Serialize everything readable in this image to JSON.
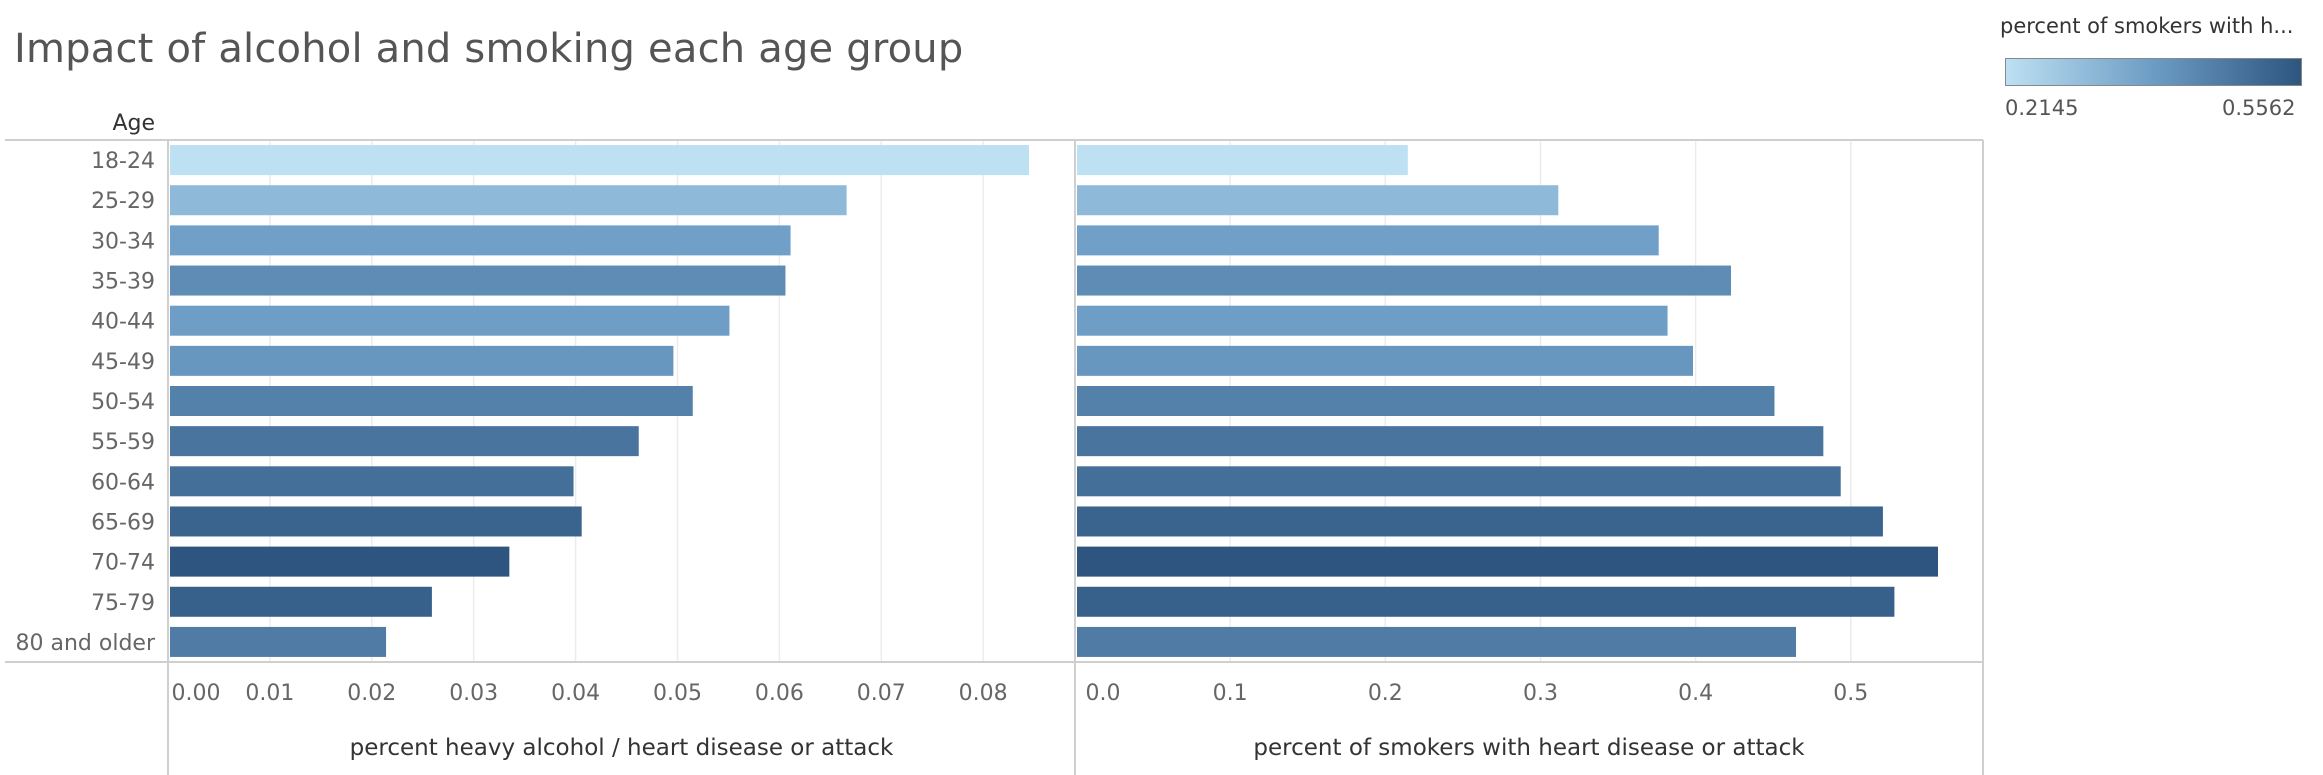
{
  "title": "Impact of alcohol and smoking each age group",
  "legend": {
    "title": "percent of smokers with h...",
    "min_label": "0.2145",
    "max_label": "0.5562",
    "min": 0.2145,
    "max": 0.5562,
    "color_low": "#bde0f3",
    "color_mid": "#6c9cc4",
    "color_high": "#2d5580"
  },
  "chart_data": {
    "type": "bar",
    "orientation": "horizontal",
    "row_header": "Age",
    "categories": [
      "18-24",
      "25-29",
      "30-34",
      "35-39",
      "40-44",
      "45-49",
      "50-54",
      "55-59",
      "60-64",
      "65-69",
      "70-74",
      "75-79",
      "80 and older"
    ],
    "color_by": "percent of smokers with heart disease or attack",
    "panels": [
      {
        "xlabel": "percent heavy alcohol / heart disease or attack",
        "xlim": [
          0,
          0.085
        ],
        "ticks": [
          0,
          0.01,
          0.02,
          0.03,
          0.04,
          0.05,
          0.06,
          0.07,
          0.08
        ],
        "tick_labels": [
          "0.00",
          "0.01",
          "0.02",
          "0.03",
          "0.04",
          "0.05",
          "0.06",
          "0.07",
          "0.08"
        ],
        "values": [
          0.0845,
          0.0666,
          0.0611,
          0.0606,
          0.0551,
          0.0496,
          0.0515,
          0.0462,
          0.0398,
          0.0406,
          0.0335,
          0.0259,
          0.0214
        ]
      },
      {
        "xlabel": "percent of smokers with heart disease or attack",
        "xlim": [
          0,
          0.56
        ],
        "ticks": [
          0,
          0.1,
          0.2,
          0.3,
          0.4,
          0.5
        ],
        "tick_labels": [
          "0.0",
          "0.1",
          "0.2",
          "0.3",
          "0.4",
          "0.5"
        ],
        "values": [
          0.2145,
          0.3115,
          0.3762,
          0.4228,
          0.3819,
          0.3983,
          0.4508,
          0.4823,
          0.4935,
          0.5207,
          0.5562,
          0.5281,
          0.4647
        ]
      }
    ],
    "grid": "vertical"
  }
}
